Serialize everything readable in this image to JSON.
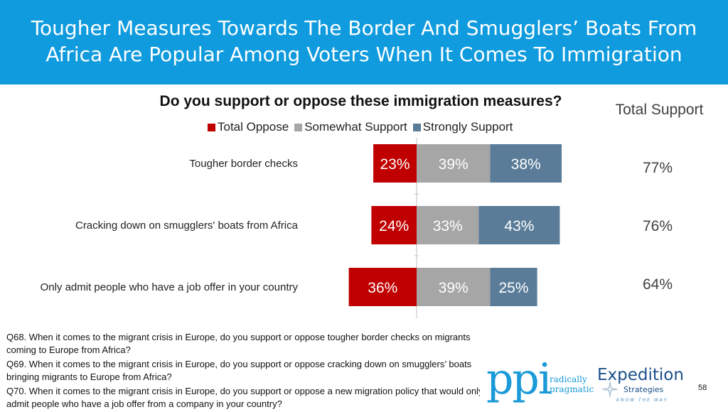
{
  "header": {
    "title_line1": "Tougher Measures Towards The Border And Smugglers’ Boats From",
    "title_line2": "Africa Are Popular Among Voters When It Comes To Immigration"
  },
  "chart_data": {
    "type": "bar",
    "orientation": "horizontal",
    "stacked": true,
    "diverging": true,
    "title": "Do you support or oppose these immigration measures?",
    "categories": [
      "Tougher border checks",
      "Cracking down on smugglers' boats from Africa",
      "Only admit people who have a job offer in your country"
    ],
    "series": [
      {
        "name": "Total Oppose",
        "color": "#c00000",
        "values": [
          23,
          24,
          36
        ],
        "labels": [
          "23%",
          "24%",
          "36%"
        ]
      },
      {
        "name": "Somewhat Support",
        "color": "#a6a6a6",
        "values": [
          39,
          33,
          39
        ],
        "labels": [
          "39%",
          "33%",
          "39%"
        ]
      },
      {
        "name": "Strongly Support",
        "color": "#5a7c99",
        "values": [
          38,
          43,
          25
        ],
        "labels": [
          "38%",
          "43%",
          "25%"
        ]
      }
    ],
    "legend_position": "top",
    "grid": false
  },
  "total_support": {
    "header": "Total Support",
    "values": [
      "77%",
      "76%",
      "64%"
    ]
  },
  "footnotes": [
    "Q68. When it comes to the migrant crisis in Europe, do you support or oppose tougher border checks on migrants coming to Europe from Africa?",
    "Q69. When it comes to the migrant crisis in Europe, do you support or oppose cracking down on smugglers’ boats bringing migrants to Europe from Africa?",
    "Q70. When it comes to the migrant crisis in Europe, do you support or oppose a new migration policy that would only admit people who have a job offer from a company in your country?"
  ],
  "logos": {
    "ppi_mark": "ppi",
    "ppi_tagline_1": "radically",
    "ppi_tagline_2": "pragmatic",
    "expedition_name": "Expedition",
    "expedition_sub": "Strategies",
    "expedition_tagline": "KNOW THE WAY"
  },
  "page_number": "58"
}
